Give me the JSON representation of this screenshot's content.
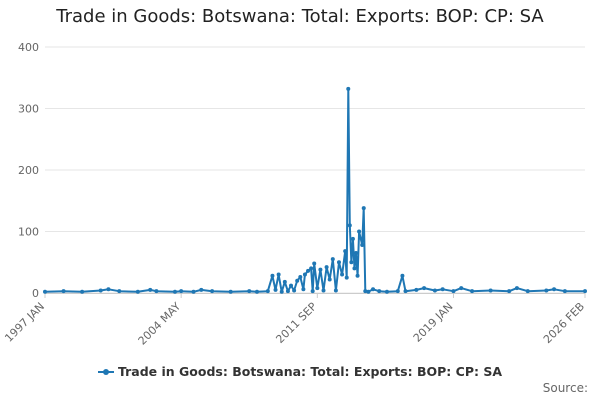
{
  "chart_data": {
    "type": "line",
    "title": "Trade in Goods: Botswana: Total: Exports: BOP: CP: SA",
    "xlabel": "",
    "ylabel": "",
    "ylim": [
      0,
      400
    ],
    "yticks": [
      "0",
      "100",
      "200",
      "300",
      "400"
    ],
    "xtick_labels": [
      "1997 JAN",
      "2004 MAY",
      "2011 SEP",
      "2019 JAN",
      "2026 FEB"
    ],
    "grid": true,
    "legend_position": "bottom-center",
    "color": "#1f77b4",
    "x_unit": "month",
    "series": [
      {
        "name": "Trade in Goods: Botswana: Total: Exports: BOP: CP: SA",
        "points": [
          [
            "1997-01",
            2
          ],
          [
            "1998-01",
            3
          ],
          [
            "1999-01",
            2
          ],
          [
            "2000-01",
            4
          ],
          [
            "2000-06",
            6
          ],
          [
            "2001-01",
            3
          ],
          [
            "2002-01",
            2
          ],
          [
            "2002-09",
            5
          ],
          [
            "2003-01",
            3
          ],
          [
            "2004-01",
            2
          ],
          [
            "2004-05",
            3
          ],
          [
            "2005-01",
            2
          ],
          [
            "2005-06",
            5
          ],
          [
            "2006-01",
            3
          ],
          [
            "2007-01",
            2
          ],
          [
            "2008-01",
            3
          ],
          [
            "2008-06",
            2
          ],
          [
            "2009-01",
            3
          ],
          [
            "2009-04",
            28
          ],
          [
            "2009-06",
            5
          ],
          [
            "2009-08",
            30
          ],
          [
            "2009-10",
            2
          ],
          [
            "2009-12",
            18
          ],
          [
            "2010-02",
            3
          ],
          [
            "2010-04",
            12
          ],
          [
            "2010-06",
            4
          ],
          [
            "2010-08",
            20
          ],
          [
            "2010-10",
            26
          ],
          [
            "2010-12",
            6
          ],
          [
            "2011-01",
            30
          ],
          [
            "2011-03",
            36
          ],
          [
            "2011-05",
            40
          ],
          [
            "2011-06",
            3
          ],
          [
            "2011-07",
            48
          ],
          [
            "2011-09",
            8
          ],
          [
            "2011-11",
            38
          ],
          [
            "2012-01",
            4
          ],
          [
            "2012-03",
            42
          ],
          [
            "2012-05",
            22
          ],
          [
            "2012-07",
            55
          ],
          [
            "2012-09",
            4
          ],
          [
            "2012-11",
            50
          ],
          [
            "2013-01",
            30
          ],
          [
            "2013-03",
            68
          ],
          [
            "2013-04",
            25
          ],
          [
            "2013-05",
            332
          ],
          [
            "2013-06",
            110
          ],
          [
            "2013-07",
            50
          ],
          [
            "2013-08",
            88
          ],
          [
            "2013-09",
            40
          ],
          [
            "2013-10",
            65
          ],
          [
            "2013-11",
            28
          ],
          [
            "2013-12",
            100
          ],
          [
            "2014-02",
            78
          ],
          [
            "2014-03",
            138
          ],
          [
            "2014-04",
            3
          ],
          [
            "2014-06",
            2
          ],
          [
            "2014-09",
            6
          ],
          [
            "2015-01",
            3
          ],
          [
            "2015-06",
            2
          ],
          [
            "2016-01",
            3
          ],
          [
            "2016-04",
            28
          ],
          [
            "2016-06",
            3
          ],
          [
            "2017-01",
            5
          ],
          [
            "2017-06",
            8
          ],
          [
            "2018-01",
            4
          ],
          [
            "2018-06",
            6
          ],
          [
            "2019-01",
            3
          ],
          [
            "2019-06",
            8
          ],
          [
            "2020-01",
            3
          ],
          [
            "2021-01",
            4
          ],
          [
            "2022-01",
            3
          ],
          [
            "2022-06",
            8
          ],
          [
            "2023-01",
            3
          ],
          [
            "2024-01",
            4
          ],
          [
            "2024-06",
            6
          ],
          [
            "2025-01",
            3
          ],
          [
            "2026-02",
            3
          ]
        ]
      }
    ]
  },
  "footer": {
    "credit": "Source:"
  }
}
